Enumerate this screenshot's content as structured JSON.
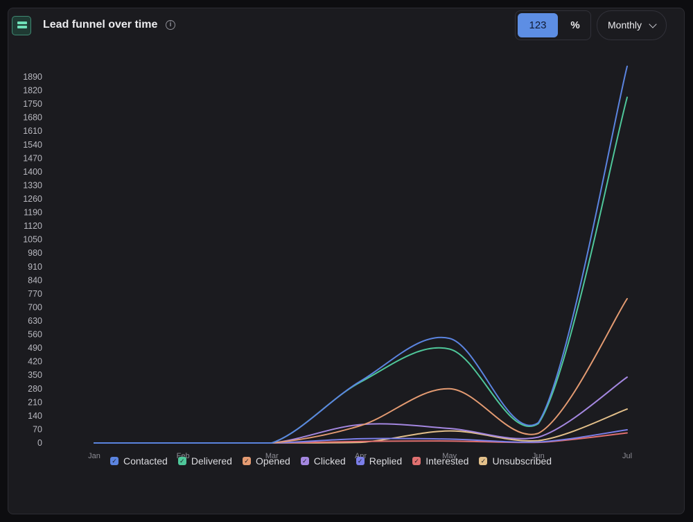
{
  "header": {
    "title": "Lead funnel over time",
    "info_icon": "info-circle-icon",
    "icon": "funnel-bars-icon"
  },
  "toggle": {
    "count_label": "123",
    "percent_label": "%"
  },
  "period_select": {
    "value": "Monthly",
    "icon": "chevron-down-icon"
  },
  "chart_data": {
    "type": "line",
    "x": [
      "Jan",
      "Feb",
      "Mar",
      "Apr",
      "May",
      "Jun",
      "Jul"
    ],
    "y_ticks": [
      "0",
      "70",
      "140",
      "210",
      "280",
      "350",
      "420",
      "490",
      "560",
      "630",
      "700",
      "770",
      "840",
      "910",
      "980",
      "1050",
      "1120",
      "1190",
      "1260",
      "1330",
      "1400",
      "1470",
      "1540",
      "1610",
      "1680",
      "1750",
      "1820",
      "1890"
    ],
    "ylim": [
      0,
      1890
    ],
    "grid": false,
    "legend_position": "bottom",
    "series": [
      {
        "name": "Contacted",
        "color": "#5b84e0",
        "values": [
          0,
          0,
          0,
          320,
          540,
          105,
          1945
        ]
      },
      {
        "name": "Delivered",
        "color": "#4fc79a",
        "values": [
          0,
          0,
          0,
          315,
          485,
          100,
          1785
        ]
      },
      {
        "name": "Opened",
        "color": "#e49b72",
        "values": [
          0,
          0,
          0,
          90,
          280,
          50,
          745
        ]
      },
      {
        "name": "Clicked",
        "color": "#a487e0",
        "values": [
          0,
          0,
          0,
          95,
          75,
          30,
          340
        ]
      },
      {
        "name": "Replied",
        "color": "#7b7ee8",
        "values": [
          0,
          0,
          0,
          22,
          20,
          5,
          68
        ]
      },
      {
        "name": "Interested",
        "color": "#e07070",
        "values": [
          0,
          0,
          0,
          8,
          10,
          3,
          52
        ]
      },
      {
        "name": "Unsubscribed",
        "color": "#e3c08a",
        "values": [
          0,
          0,
          0,
          3,
          62,
          12,
          175
        ]
      }
    ]
  }
}
